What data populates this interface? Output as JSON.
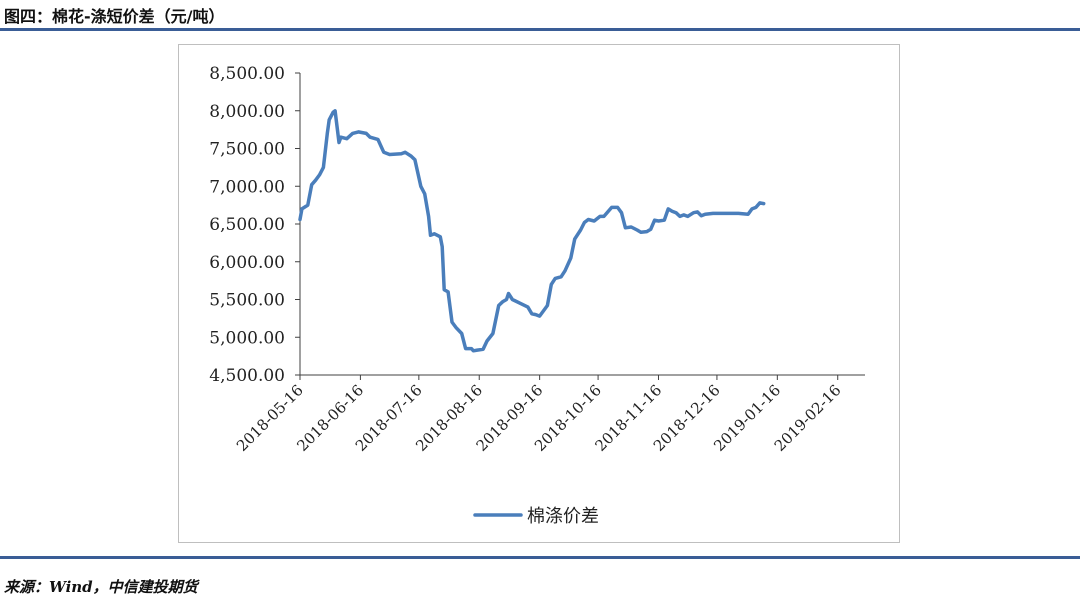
{
  "figure": {
    "title": "图四：棉花-涤短价差（元/吨）",
    "source": "来源：Wind，中信建投期货"
  },
  "colors": {
    "series": "#4a7ebb",
    "axis": "#404040",
    "rule": "#3a5d96"
  },
  "chart_data": {
    "type": "line",
    "title": "",
    "xlabel": "",
    "ylabel": "",
    "ylim": [
      4500,
      8500
    ],
    "y_ticks": [
      4500,
      5000,
      5500,
      6000,
      6500,
      7000,
      7500,
      8000,
      8500
    ],
    "y_tick_labels": [
      "4,500.00",
      "5,000.00",
      "5,500.00",
      "6,000.00",
      "6,500.00",
      "7,000.00",
      "7,500.00",
      "8,000.00",
      "8,500.00"
    ],
    "x_tick_labels": [
      "2018-05-16",
      "2018-06-16",
      "2018-07-16",
      "2018-08-16",
      "2018-09-16",
      "2018-10-16",
      "2018-11-16",
      "2018-12-16",
      "2019-01-16",
      "2019-02-16"
    ],
    "x_domain_days": [
      0,
      290
    ],
    "x_tick_days": [
      0,
      31,
      61,
      92,
      123,
      153,
      184,
      214,
      245,
      276
    ],
    "grid": false,
    "legend": "bottom",
    "series": [
      {
        "name": "棉涤价差",
        "points": [
          [
            0,
            6560
          ],
          [
            1,
            6700
          ],
          [
            4,
            6750
          ],
          [
            6,
            7020
          ],
          [
            8,
            7080
          ],
          [
            10,
            7150
          ],
          [
            12,
            7250
          ],
          [
            14,
            7700
          ],
          [
            15,
            7880
          ],
          [
            17,
            7980
          ],
          [
            18,
            8000
          ],
          [
            20,
            7580
          ],
          [
            21,
            7650
          ],
          [
            24,
            7630
          ],
          [
            27,
            7700
          ],
          [
            30,
            7720
          ],
          [
            34,
            7700
          ],
          [
            36,
            7650
          ],
          [
            40,
            7620
          ],
          [
            43,
            7450
          ],
          [
            46,
            7420
          ],
          [
            52,
            7430
          ],
          [
            54,
            7450
          ],
          [
            57,
            7400
          ],
          [
            59,
            7350
          ],
          [
            62,
            7000
          ],
          [
            64,
            6900
          ],
          [
            66,
            6600
          ],
          [
            67,
            6350
          ],
          [
            69,
            6370
          ],
          [
            72,
            6330
          ],
          [
            73,
            6200
          ],
          [
            74,
            5630
          ],
          [
            76,
            5600
          ],
          [
            78,
            5200
          ],
          [
            80,
            5130
          ],
          [
            83,
            5050
          ],
          [
            85,
            4850
          ],
          [
            88,
            4850
          ],
          [
            89,
            4820
          ],
          [
            91,
            4830
          ],
          [
            94,
            4840
          ],
          [
            96,
            4950
          ],
          [
            99,
            5050
          ],
          [
            101,
            5300
          ],
          [
            102,
            5420
          ],
          [
            104,
            5470
          ],
          [
            106,
            5500
          ],
          [
            107,
            5580
          ],
          [
            109,
            5500
          ],
          [
            113,
            5450
          ],
          [
            117,
            5400
          ],
          [
            119,
            5310
          ],
          [
            121,
            5300
          ],
          [
            123,
            5280
          ],
          [
            127,
            5420
          ],
          [
            129,
            5700
          ],
          [
            131,
            5780
          ],
          [
            134,
            5800
          ],
          [
            136,
            5880
          ],
          [
            139,
            6050
          ],
          [
            141,
            6300
          ],
          [
            144,
            6420
          ],
          [
            146,
            6520
          ],
          [
            148,
            6560
          ],
          [
            151,
            6540
          ],
          [
            154,
            6600
          ],
          [
            156,
            6600
          ],
          [
            158,
            6660
          ],
          [
            160,
            6720
          ],
          [
            163,
            6720
          ],
          [
            165,
            6650
          ],
          [
            167,
            6450
          ],
          [
            170,
            6460
          ],
          [
            173,
            6420
          ],
          [
            175,
            6390
          ],
          [
            178,
            6400
          ],
          [
            180,
            6430
          ],
          [
            182,
            6550
          ],
          [
            184,
            6540
          ],
          [
            187,
            6550
          ],
          [
            189,
            6700
          ],
          [
            191,
            6670
          ],
          [
            193,
            6650
          ],
          [
            195,
            6600
          ],
          [
            197,
            6620
          ],
          [
            199,
            6600
          ],
          [
            202,
            6650
          ],
          [
            204,
            6660
          ],
          [
            206,
            6610
          ],
          [
            208,
            6630
          ],
          [
            212,
            6640
          ],
          [
            218,
            6640
          ],
          [
            225,
            6640
          ],
          [
            230,
            6630
          ],
          [
            232,
            6700
          ],
          [
            234,
            6720
          ],
          [
            236,
            6780
          ],
          [
            238,
            6770
          ]
        ]
      }
    ]
  }
}
